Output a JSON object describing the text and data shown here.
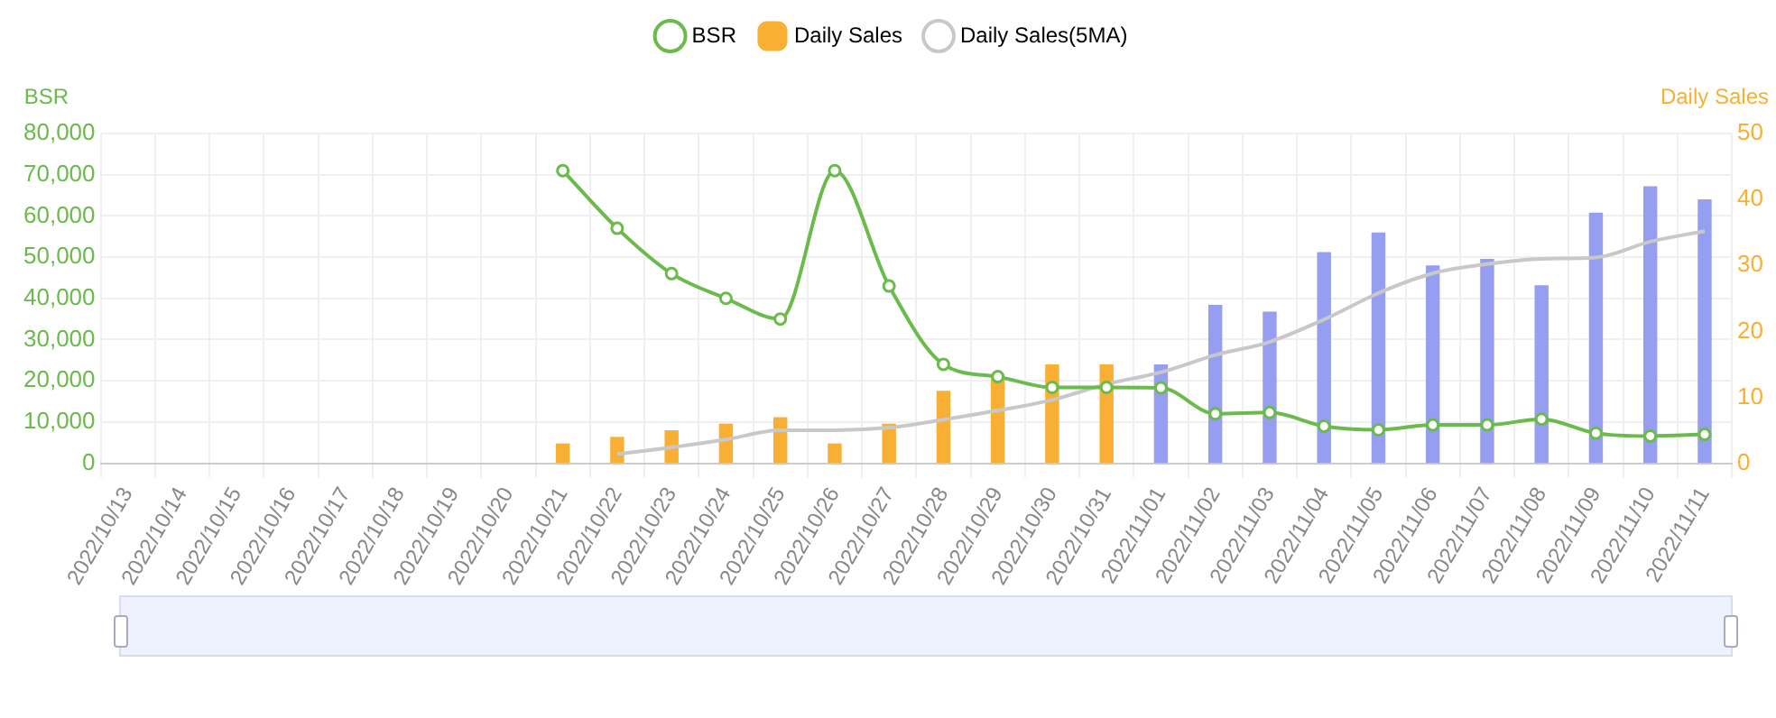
{
  "chart_data": {
    "type": "bar",
    "categories": [
      "2022/10/13",
      "2022/10/14",
      "2022/10/15",
      "2022/10/16",
      "2022/10/17",
      "2022/10/18",
      "2022/10/19",
      "2022/10/20",
      "2022/10/21",
      "2022/10/22",
      "2022/10/23",
      "2022/10/24",
      "2022/10/25",
      "2022/10/26",
      "2022/10/27",
      "2022/10/28",
      "2022/10/29",
      "2022/10/30",
      "2022/10/31",
      "2022/11/01",
      "2022/11/02",
      "2022/11/03",
      "2022/11/04",
      "2022/11/05",
      "2022/11/06",
      "2022/11/07",
      "2022/11/08",
      "2022/11/09",
      "2022/11/10",
      "2022/11/11"
    ],
    "ylabel": "BSR",
    "y2label": "Daily Sales",
    "ylim": [
      0,
      80000
    ],
    "yticks": [
      0,
      {
        "value": 10000,
        "label": "10,000"
      },
      {
        "value": 20000,
        "label": "20,000"
      },
      {
        "value": 30000,
        "label": "30,000"
      },
      {
        "value": 40000,
        "label": "40,000"
      },
      {
        "value": 50000,
        "label": "50,000"
      },
      {
        "value": 60000,
        "label": "60,000"
      },
      {
        "value": 70000,
        "label": "70,000"
      },
      {
        "value": 80000,
        "label": "80,000"
      }
    ],
    "y2lim": [
      0,
      50
    ],
    "y2ticks": [
      0,
      10,
      20,
      30,
      40,
      50
    ],
    "grid": true,
    "legend": "top",
    "series": [
      {
        "name": "BSR",
        "type": "line",
        "color": "#6bbb4c",
        "marker": "circle",
        "values": [
          null,
          null,
          null,
          null,
          null,
          null,
          null,
          null,
          71000,
          57000,
          46000,
          40000,
          35000,
          71000,
          43000,
          24000,
          21000,
          18400,
          18400,
          18300,
          12000,
          12300,
          9000,
          8100,
          9300,
          9300,
          10700,
          7300,
          6600,
          7000
        ]
      },
      {
        "name": "Daily Sales",
        "axis": "y2",
        "color": "#f9ae34",
        "colors": [
          "#f9ae34",
          "#f9ae34",
          "#f9ae34",
          "#f9ae34",
          "#f9ae34",
          "#f9ae34",
          "#f9ae34",
          "#f9ae34",
          "#f9ae34",
          "#f9ae34",
          "#f9ae34",
          "#f9ae34",
          "#f9ae34",
          "#f9ae34",
          "#f9ae34",
          "#f9ae34",
          "#f9ae34",
          "#f9ae34",
          "#f9ae34",
          "#959ef0",
          "#959ef0",
          "#959ef0",
          "#959ef0",
          "#959ef0",
          "#959ef0",
          "#959ef0",
          "#959ef0",
          "#959ef0",
          "#959ef0",
          "#959ef0"
        ],
        "values": [
          null,
          null,
          null,
          null,
          null,
          null,
          null,
          null,
          3,
          4,
          5,
          6,
          7,
          3,
          6,
          11,
          13,
          15,
          15,
          15,
          24,
          23,
          32,
          35,
          30,
          31,
          27,
          38,
          42,
          40
        ]
      },
      {
        "name": "Daily Sales(5MA)",
        "type": "line",
        "axis": "y2",
        "color": "#c8c8c8",
        "marker": "none",
        "values": [
          null,
          null,
          null,
          null,
          null,
          null,
          null,
          null,
          null,
          1.4,
          2.4,
          3.6,
          5,
          5,
          5.4,
          6.6,
          8,
          9.6,
          12,
          13.8,
          16.4,
          18.4,
          21.8,
          25.8,
          28.8,
          30.2,
          31,
          31.2,
          33.6,
          35.2
        ]
      }
    ]
  }
}
